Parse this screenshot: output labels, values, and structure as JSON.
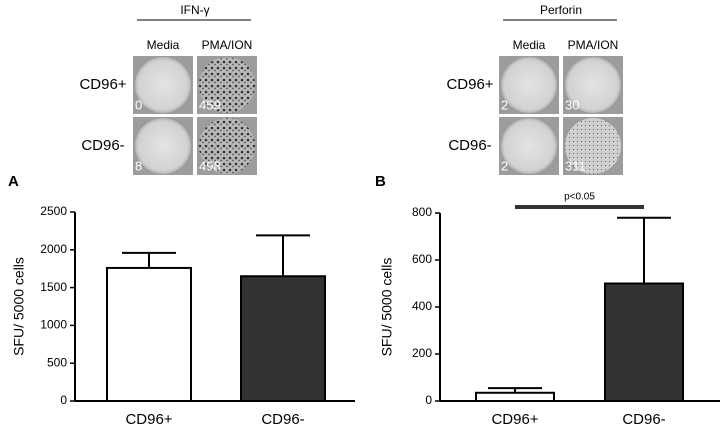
{
  "panels": [
    {
      "title": "IFN-γ",
      "columns": [
        "Media",
        "PMA/ION"
      ],
      "rows": [
        "CD96+",
        "CD96-"
      ],
      "counts": [
        [
          0,
          459
        ],
        [
          8,
          498
        ]
      ]
    },
    {
      "title": "Perforin",
      "columns": [
        "Media",
        "PMA/ION"
      ],
      "rows": [
        "CD96+",
        "CD96-"
      ],
      "counts": [
        [
          2,
          30
        ],
        [
          2,
          311
        ]
      ]
    }
  ],
  "chart_data": [
    {
      "type": "bar",
      "panel_label": "A",
      "ylabel": "SFU/ 5000 cells",
      "categories": [
        "CD96+",
        "CD96-"
      ],
      "values": [
        1760,
        1650
      ],
      "errors": [
        200,
        540
      ],
      "colors": [
        "#ffffff",
        "#333333"
      ],
      "ylim": [
        0,
        2500
      ],
      "yticks": [
        0,
        500,
        1000,
        1500,
        2000,
        2500
      ]
    },
    {
      "type": "bar",
      "panel_label": "B",
      "ylabel": "SFU/ 5000 cells",
      "categories": [
        "CD96+",
        "CD96-"
      ],
      "values": [
        35,
        500
      ],
      "errors": [
        20,
        280
      ],
      "colors": [
        "#ffffff",
        "#333333"
      ],
      "ylim": [
        0,
        800
      ],
      "yticks": [
        0,
        200,
        400,
        600,
        800
      ],
      "annotation": "p<0.05"
    }
  ]
}
